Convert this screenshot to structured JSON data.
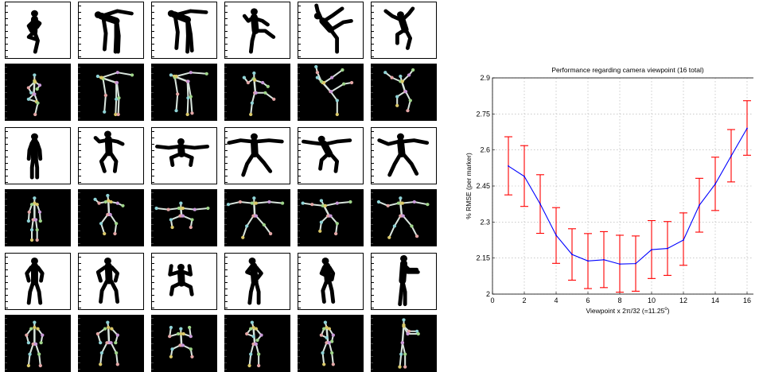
{
  "figure_grid": {
    "rows": [
      {
        "kind": "silhouette",
        "poses": [
          "crouch-kick",
          "lean-arm-forward",
          "lean-arm-forward-b",
          "arm-raised-kick",
          "high-kick",
          "crouch-arms-up"
        ]
      },
      {
        "kind": "skeleton",
        "poses": [
          "crouch-kick",
          "lean-arm-forward",
          "lean-arm-forward-b",
          "arm-raised-kick",
          "high-kick",
          "crouch-arms-up"
        ]
      },
      {
        "kind": "silhouette",
        "poses": [
          "stand-front",
          "crouch-arms-out",
          "squat-arms-wide",
          "wide-stance-arms-out",
          "squat-arms-wide-b",
          "wide-stance-arms-out-b"
        ]
      },
      {
        "kind": "skeleton",
        "poses": [
          "stand-front",
          "crouch-arms-out",
          "squat-arms-wide",
          "wide-stance-arms-out",
          "squat-arms-wide-b",
          "wide-stance-arms-out-b"
        ]
      },
      {
        "kind": "silhouette",
        "poses": [
          "stand-arms-bent",
          "stand-arms-bent-b",
          "squat-hands-up",
          "stand-arms-bent-c",
          "stand-arms-bent-d",
          "side-view-arms-forward"
        ]
      },
      {
        "kind": "skeleton",
        "poses": [
          "stand-arms-bent",
          "stand-arms-bent-b",
          "squat-hands-up",
          "stand-arms-bent-c",
          "stand-arms-bent-d",
          "side-view-arms-forward"
        ]
      }
    ],
    "colors": {
      "silhouette_fill": "#000000",
      "skeleton_bg": "#000000",
      "bone": "#d8e4dc",
      "joints": [
        "#8fd3d6",
        "#d9c86a",
        "#c99ad8",
        "#9fd58a",
        "#e3a6a6"
      ]
    }
  },
  "chart_data": {
    "type": "line",
    "title": "Performance regarding camera viewpoint (16 total)",
    "xlabel": "Viewpoint  x  2π/32  (=11.25",
    "xlabel_sup": "o",
    "xlabel_end": ")",
    "ylabel": "% RMSE (per marker)",
    "x": [
      1,
      2,
      3,
      4,
      5,
      6,
      7,
      8,
      9,
      10,
      11,
      12,
      13,
      14,
      15,
      16
    ],
    "y": [
      2.533,
      2.49,
      2.375,
      2.245,
      2.165,
      2.138,
      2.143,
      2.125,
      2.127,
      2.185,
      2.19,
      2.225,
      2.37,
      2.458,
      2.575,
      2.69
    ],
    "err_low": [
      2.413,
      2.365,
      2.253,
      2.128,
      2.058,
      2.023,
      2.027,
      2.008,
      2.012,
      2.065,
      2.078,
      2.12,
      2.258,
      2.348,
      2.467,
      2.578
    ],
    "err_high": [
      2.655,
      2.618,
      2.497,
      2.36,
      2.272,
      2.252,
      2.26,
      2.245,
      2.242,
      2.306,
      2.302,
      2.338,
      2.482,
      2.57,
      2.685,
      2.805
    ],
    "xlim": [
      0,
      17
    ],
    "ylim": [
      2.0,
      2.9
    ],
    "xticks": [
      "0",
      "2",
      "4",
      "6",
      "8",
      "10",
      "12",
      "14",
      "16"
    ],
    "yticks": [
      "2",
      "2.15",
      "2.3",
      "2.45",
      "2.6",
      "2.75",
      "2.9"
    ],
    "grid": true,
    "line_color": "#0000ff",
    "errorbar_color": "#ff0000"
  }
}
